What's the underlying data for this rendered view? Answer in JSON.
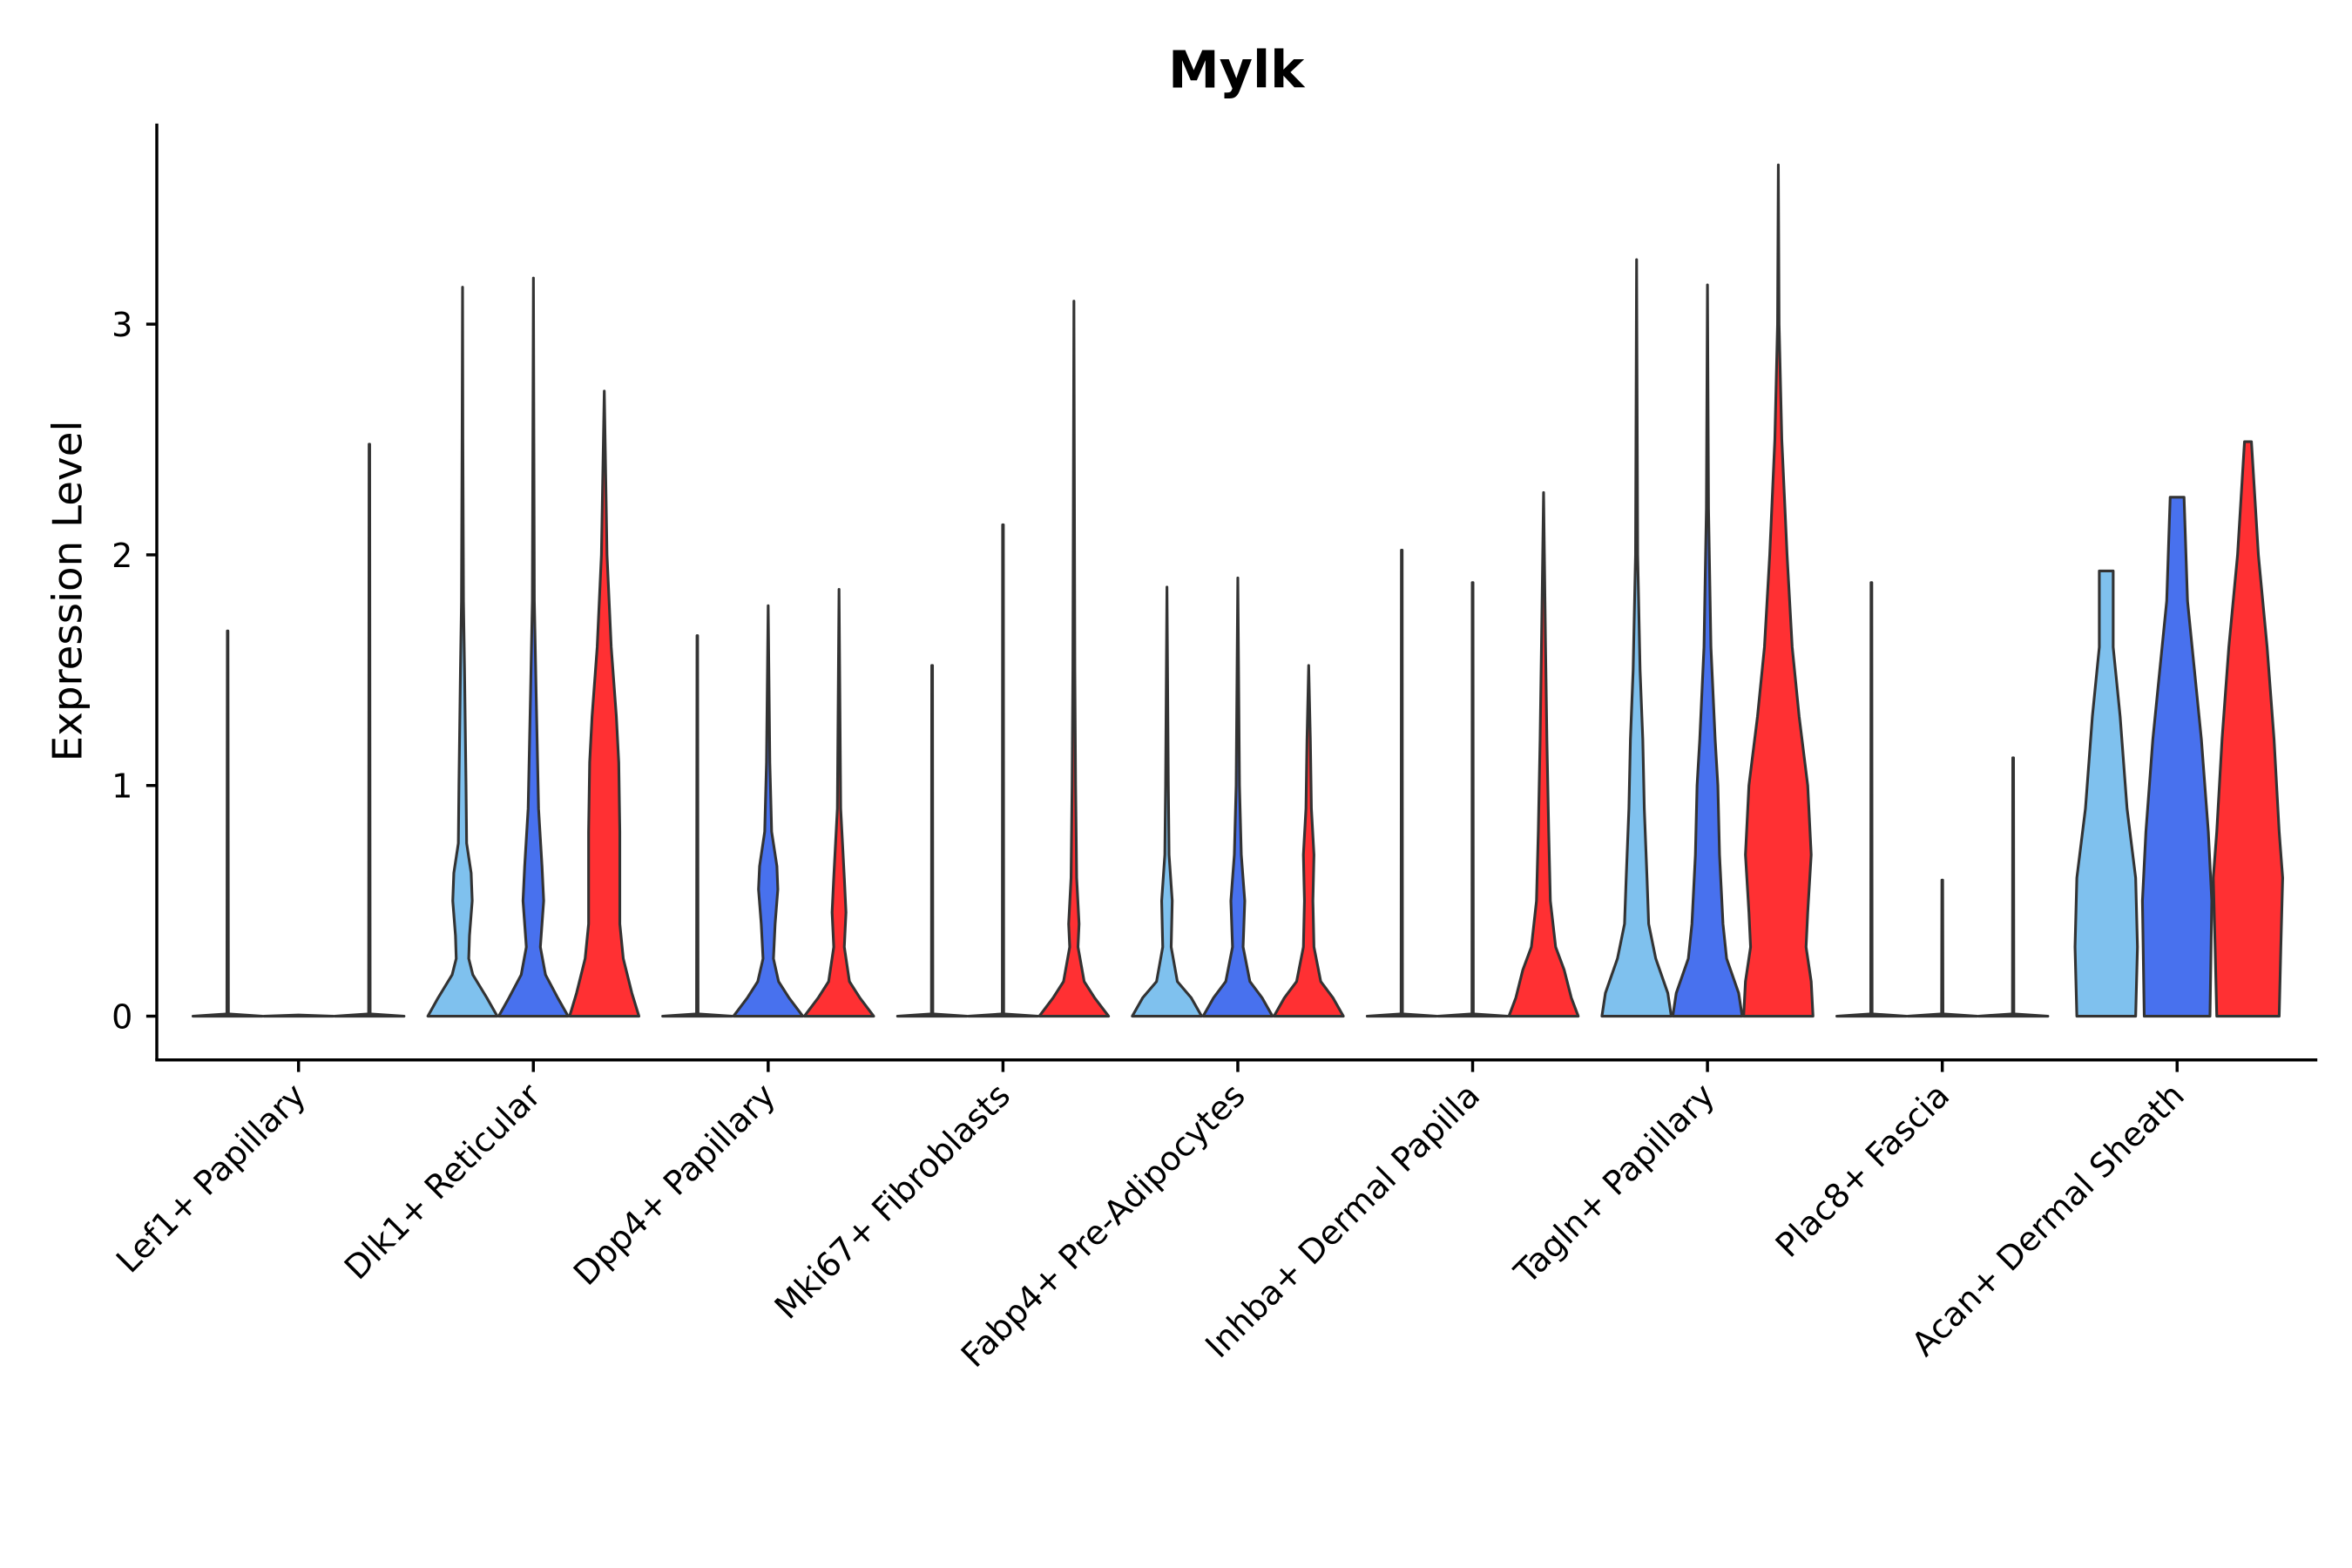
{
  "chart_data": {
    "type": "violin",
    "title": "Mylk",
    "xlabel": "",
    "ylabel": "Expression Level",
    "ylim": [
      -0.19,
      3.87
    ],
    "yticks": [
      "0",
      "1",
      "2",
      "3"
    ],
    "ytick_values": [
      0,
      1,
      2,
      3
    ],
    "grid": false,
    "legend": "none",
    "split_colors": [
      "#7FC1EE",
      "#4871EE",
      "#FF3033"
    ],
    "categories": [
      "Lef1+ Papillary",
      "Dlk1+ Reticular",
      "Dpp4+ Papillary",
      "Mki67+ Fibroblasts",
      "Fabp4+ Pre-Adipocytes",
      "Inhba+ Dermal Papilla",
      "Tagln+ Papillary",
      "Plac8+ Fascia",
      "Acan+ Dermal Sheath"
    ],
    "max_values": [
      [
        1.67,
        0.0,
        2.48
      ],
      [
        3.16,
        3.2,
        2.71
      ],
      [
        1.65,
        1.78,
        1.85
      ],
      [
        1.52,
        2.13,
        3.1
      ],
      [
        1.86,
        1.9,
        1.52
      ],
      [
        2.02,
        1.88,
        2.27
      ],
      [
        3.28,
        3.17,
        3.69
      ],
      [
        1.88,
        0.59,
        1.12
      ],
      [
        1.93,
        2.25,
        2.49
      ]
    ],
    "density_profiles_note": "each profile is [expression value, relative density 0-1]",
    "profiles": [
      [
        [
          [
            0,
            1
          ],
          [
            0.01,
            0.02
          ],
          [
            1.67,
            0.01
          ]
        ],
        [
          [
            0,
            1
          ],
          [
            0.005,
            0
          ]
        ],
        [
          [
            0,
            1
          ],
          [
            0.01,
            0.02
          ],
          [
            2.48,
            0.01
          ]
        ]
      ],
      [
        [
          [
            0,
            1
          ],
          [
            0.08,
            0.7
          ],
          [
            0.18,
            0.3
          ],
          [
            0.25,
            0.18
          ],
          [
            0.35,
            0.2
          ],
          [
            0.5,
            0.28
          ],
          [
            0.62,
            0.25
          ],
          [
            0.75,
            0.12
          ],
          [
            1.0,
            0.1
          ],
          [
            1.5,
            0.06
          ],
          [
            1.8,
            0.03
          ],
          [
            2.5,
            0.01
          ],
          [
            3.16,
            0
          ]
        ],
        [
          [
            0,
            1
          ],
          [
            0.08,
            0.7
          ],
          [
            0.18,
            0.35
          ],
          [
            0.3,
            0.2
          ],
          [
            0.5,
            0.3
          ],
          [
            0.65,
            0.25
          ],
          [
            0.9,
            0.15
          ],
          [
            1.4,
            0.08
          ],
          [
            1.8,
            0.03
          ],
          [
            3.2,
            0
          ]
        ],
        [
          [
            0,
            1
          ],
          [
            0.1,
            0.8
          ],
          [
            0.25,
            0.55
          ],
          [
            0.4,
            0.45
          ],
          [
            0.8,
            0.45
          ],
          [
            1.1,
            0.42
          ],
          [
            1.3,
            0.35
          ],
          [
            1.6,
            0.2
          ],
          [
            2.0,
            0.08
          ],
          [
            2.71,
            0
          ]
        ]
      ],
      [
        [
          [
            0,
            1
          ],
          [
            0.01,
            0.02
          ],
          [
            1.65,
            0.01
          ]
        ],
        [
          [
            0,
            1
          ],
          [
            0.08,
            0.6
          ],
          [
            0.15,
            0.3
          ],
          [
            0.25,
            0.15
          ],
          [
            0.4,
            0.2
          ],
          [
            0.55,
            0.28
          ],
          [
            0.65,
            0.25
          ],
          [
            0.8,
            0.1
          ],
          [
            1.1,
            0.05
          ],
          [
            1.78,
            0
          ]
        ],
        [
          [
            0,
            1
          ],
          [
            0.08,
            0.6
          ],
          [
            0.15,
            0.3
          ],
          [
            0.3,
            0.15
          ],
          [
            0.45,
            0.2
          ],
          [
            0.6,
            0.15
          ],
          [
            0.9,
            0.05
          ],
          [
            1.85,
            0
          ]
        ]
      ],
      [
        [
          [
            0,
            1
          ],
          [
            0.01,
            0.02
          ],
          [
            1.52,
            0.01
          ]
        ],
        [
          [
            0,
            1
          ],
          [
            0.01,
            0.02
          ],
          [
            2.13,
            0.01
          ]
        ],
        [
          [
            0,
            1
          ],
          [
            0.08,
            0.6
          ],
          [
            0.15,
            0.3
          ],
          [
            0.3,
            0.12
          ],
          [
            0.4,
            0.15
          ],
          [
            0.6,
            0.08
          ],
          [
            1.0,
            0.05
          ],
          [
            1.5,
            0.03
          ],
          [
            3.1,
            0
          ]
        ]
      ],
      [
        [
          [
            0,
            1
          ],
          [
            0.08,
            0.7
          ],
          [
            0.15,
            0.3
          ],
          [
            0.3,
            0.12
          ],
          [
            0.5,
            0.15
          ],
          [
            0.7,
            0.06
          ],
          [
            1.0,
            0.04
          ],
          [
            1.86,
            0
          ]
        ],
        [
          [
            0,
            1
          ],
          [
            0.08,
            0.7
          ],
          [
            0.15,
            0.35
          ],
          [
            0.3,
            0.15
          ],
          [
            0.5,
            0.2
          ],
          [
            0.7,
            0.1
          ],
          [
            1.0,
            0.05
          ],
          [
            1.9,
            0
          ]
        ],
        [
          [
            0,
            1
          ],
          [
            0.08,
            0.7
          ],
          [
            0.15,
            0.35
          ],
          [
            0.3,
            0.15
          ],
          [
            0.5,
            0.12
          ],
          [
            0.7,
            0.15
          ],
          [
            0.9,
            0.08
          ],
          [
            1.2,
            0.05
          ],
          [
            1.52,
            0
          ]
        ]
      ],
      [
        [
          [
            0,
            1
          ],
          [
            0.01,
            0.02
          ],
          [
            2.02,
            0.01
          ]
        ],
        [
          [
            0,
            1
          ],
          [
            0.01,
            0.02
          ],
          [
            1.88,
            0.01
          ]
        ],
        [
          [
            0,
            1
          ],
          [
            0.08,
            0.8
          ],
          [
            0.2,
            0.6
          ],
          [
            0.3,
            0.35
          ],
          [
            0.5,
            0.2
          ],
          [
            0.8,
            0.15
          ],
          [
            1.2,
            0.1
          ],
          [
            1.6,
            0.06
          ],
          [
            2.27,
            0
          ]
        ]
      ],
      [
        [
          [
            0,
            1
          ],
          [
            0.1,
            0.9
          ],
          [
            0.25,
            0.55
          ],
          [
            0.4,
            0.35
          ],
          [
            0.6,
            0.3
          ],
          [
            0.9,
            0.22
          ],
          [
            1.2,
            0.18
          ],
          [
            1.5,
            0.1
          ],
          [
            2.0,
            0.03
          ],
          [
            3.28,
            0
          ]
        ],
        [
          [
            0,
            1
          ],
          [
            0.1,
            0.9
          ],
          [
            0.25,
            0.55
          ],
          [
            0.4,
            0.45
          ],
          [
            0.7,
            0.35
          ],
          [
            1.0,
            0.3
          ],
          [
            1.2,
            0.22
          ],
          [
            1.6,
            0.1
          ],
          [
            2.2,
            0.03
          ],
          [
            3.17,
            0
          ]
        ],
        [
          [
            0,
            1
          ],
          [
            0.15,
            0.95
          ],
          [
            0.3,
            0.8
          ],
          [
            0.45,
            0.85
          ],
          [
            0.7,
            0.95
          ],
          [
            1.0,
            0.85
          ],
          [
            1.3,
            0.6
          ],
          [
            1.6,
            0.4
          ],
          [
            2.0,
            0.25
          ],
          [
            2.5,
            0.1
          ],
          [
            3.0,
            0.02
          ],
          [
            3.69,
            0
          ]
        ]
      ],
      [
        [
          [
            0,
            1
          ],
          [
            0.01,
            0.02
          ],
          [
            1.88,
            0.01
          ]
        ],
        [
          [
            0,
            1
          ],
          [
            0.01,
            0.02
          ],
          [
            0.59,
            0.01
          ]
        ],
        [
          [
            0,
            1
          ],
          [
            0.01,
            0.02
          ],
          [
            1.12,
            0.01
          ]
        ]
      ],
      [
        [
          [
            0,
            0.85
          ],
          [
            0.3,
            0.9
          ],
          [
            0.6,
            0.85
          ],
          [
            0.9,
            0.6
          ],
          [
            1.3,
            0.4
          ],
          [
            1.45,
            0.3
          ],
          [
            1.6,
            0.2
          ],
          [
            1.93,
            0.2
          ],
          [
            1.93,
            0
          ]
        ],
        [
          [
            0,
            0.95
          ],
          [
            0.5,
            1
          ],
          [
            0.8,
            0.9
          ],
          [
            1.2,
            0.7
          ],
          [
            1.5,
            0.5
          ],
          [
            1.8,
            0.3
          ],
          [
            2.25,
            0.2
          ],
          [
            2.25,
            0
          ]
        ],
        [
          [
            0,
            0.9
          ],
          [
            0.3,
            0.95
          ],
          [
            0.6,
            1
          ],
          [
            0.8,
            0.9
          ],
          [
            1.2,
            0.75
          ],
          [
            1.6,
            0.55
          ],
          [
            2.0,
            0.3
          ],
          [
            2.49,
            0.1
          ],
          [
            2.49,
            0
          ]
        ]
      ]
    ]
  }
}
